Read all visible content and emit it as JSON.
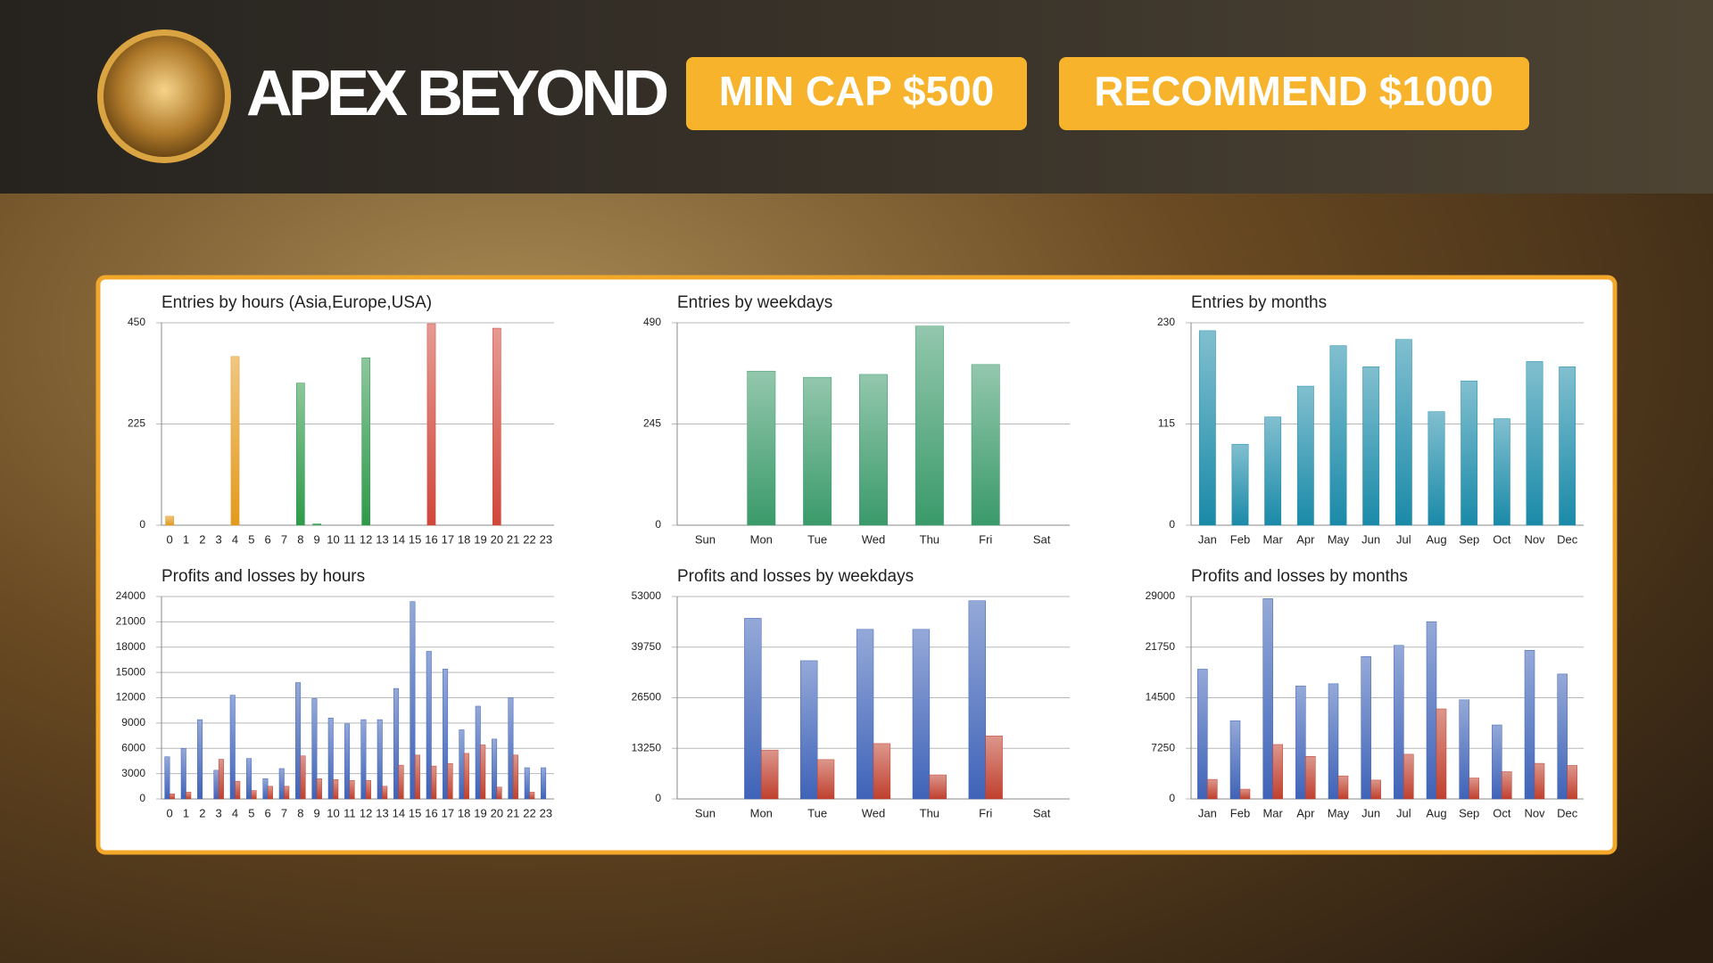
{
  "header": {
    "brand": "APEX BEYOND",
    "badges": [
      "MIN CAP $500",
      "RECOMMEND $1000"
    ]
  },
  "chart_data": [
    {
      "type": "bar",
      "title": "Entries by hours (Asia,Europe,USA)",
      "categories": [
        "0",
        "1",
        "2",
        "3",
        "4",
        "5",
        "6",
        "7",
        "8",
        "9",
        "10",
        "11",
        "12",
        "13",
        "14",
        "15",
        "16",
        "17",
        "18",
        "19",
        "20",
        "21",
        "22",
        "23"
      ],
      "values": [
        20,
        0,
        0,
        0,
        375,
        0,
        0,
        0,
        316,
        3,
        0,
        0,
        372,
        0,
        0,
        0,
        448,
        0,
        0,
        0,
        438,
        0,
        0,
        0
      ],
      "colors": [
        "#e39a1c",
        "#e39a1c",
        "#e39a1c",
        "#e39a1c",
        "#e39a1c",
        "#e39a1c",
        "#e39a1c",
        "#e39a1c",
        "#2e9a4a",
        "#2e9a4a",
        "#2e9a4a",
        "#2e9a4a",
        "#2e9a4a",
        "#2e9a4a",
        "#2e9a4a",
        "#2e9a4a",
        "#d0473a",
        "#d0473a",
        "#d0473a",
        "#d0473a",
        "#d0473a",
        "#d0473a",
        "#d0473a",
        "#d0473a"
      ],
      "ylim": [
        0,
        450
      ],
      "yticks": [
        0,
        225,
        450
      ],
      "grid": true
    },
    {
      "type": "bar",
      "title": "Entries by weekdays",
      "categories": [
        "Sun",
        "Mon",
        "Tue",
        "Wed",
        "Thu",
        "Fri",
        "Sat"
      ],
      "values": [
        0,
        373,
        358,
        365,
        482,
        389,
        0
      ],
      "color": "#3a9a6a",
      "ylim": [
        0,
        490
      ],
      "yticks": [
        0,
        245,
        490
      ],
      "grid": true
    },
    {
      "type": "bar",
      "title": "Entries by months",
      "categories": [
        "Jan",
        "Feb",
        "Mar",
        "Apr",
        "May",
        "Jun",
        "Jul",
        "Aug",
        "Sep",
        "Oct",
        "Nov",
        "Dec"
      ],
      "values": [
        221,
        92,
        123,
        158,
        204,
        180,
        211,
        129,
        164,
        121,
        186,
        180
      ],
      "color": "#1a8aa8",
      "ylim": [
        0,
        230
      ],
      "yticks": [
        0,
        115,
        230
      ],
      "grid": true
    },
    {
      "type": "bar",
      "title": "Profits and losses by hours",
      "categories": [
        "0",
        "1",
        "2",
        "3",
        "4",
        "5",
        "6",
        "7",
        "8",
        "9",
        "10",
        "11",
        "12",
        "13",
        "14",
        "15",
        "16",
        "17",
        "18",
        "19",
        "20",
        "21",
        "22",
        "23"
      ],
      "series": [
        {
          "color": "#3f63b8",
          "values": [
            5000,
            6000,
            9400,
            3400,
            12300,
            4800,
            2400,
            3600,
            13800,
            11900,
            9600,
            8900,
            9400,
            9400,
            13100,
            23400,
            17500,
            15400,
            8200,
            11000,
            7100,
            12000,
            3700,
            3700
          ]
        },
        {
          "color": "#c0402e",
          "values": [
            600,
            800,
            0,
            4700,
            2100,
            1000,
            1500,
            1500,
            5100,
            2400,
            2300,
            2200,
            2200,
            1500,
            4000,
            5200,
            3900,
            4200,
            5400,
            6400,
            1400,
            5200,
            800,
            0
          ]
        }
      ],
      "ylim": [
        0,
        24000
      ],
      "yticks": [
        0,
        3000,
        6000,
        9000,
        12000,
        15000,
        18000,
        21000,
        24000
      ],
      "grid": true
    },
    {
      "type": "bar",
      "title": "Profits and losses by weekdays",
      "categories": [
        "Sun",
        "Mon",
        "Tue",
        "Wed",
        "Thu",
        "Fri",
        "Sat"
      ],
      "series": [
        {
          "color": "#3f63b8",
          "values": [
            0,
            47300,
            36200,
            44400,
            44400,
            51900,
            0
          ]
        },
        {
          "color": "#c0402e",
          "values": [
            0,
            12800,
            10300,
            14500,
            6300,
            16500,
            0
          ]
        }
      ],
      "ylim": [
        0,
        53000
      ],
      "yticks": [
        0,
        13250,
        26500,
        39750,
        53000
      ],
      "grid": true
    },
    {
      "type": "bar",
      "title": "Profits and losses by months",
      "categories": [
        "Jan",
        "Feb",
        "Mar",
        "Apr",
        "May",
        "Jun",
        "Jul",
        "Aug",
        "Sep",
        "Oct",
        "Nov",
        "Dec"
      ],
      "series": [
        {
          "color": "#3f63b8",
          "values": [
            18600,
            11200,
            28700,
            16200,
            16500,
            20400,
            22000,
            25400,
            14200,
            10600,
            21300,
            17900
          ]
        },
        {
          "color": "#c0402e",
          "values": [
            2800,
            1400,
            7800,
            6100,
            3300,
            2700,
            6400,
            12900,
            3000,
            3900,
            5100,
            4800
          ]
        }
      ],
      "ylim": [
        0,
        29000
      ],
      "yticks": [
        0,
        7250,
        14500,
        21750,
        29000
      ],
      "grid": true
    }
  ]
}
